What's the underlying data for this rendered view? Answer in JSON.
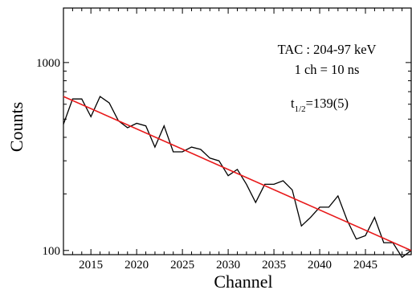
{
  "chart_data": {
    "type": "line",
    "xlabel": "Channel",
    "ylabel": "Counts",
    "xlim": [
      2012,
      2050
    ],
    "ylim": [
      95,
      1950
    ],
    "yscale": "log",
    "xticks": [
      2015,
      2020,
      2025,
      2030,
      2035,
      2040,
      2045
    ],
    "yticks": [
      100,
      1000
    ],
    "annotations": {
      "line1": "TAC : 204-97 keV",
      "line2": "1 ch = 10 ns",
      "half_life_symbol": "t",
      "half_life_subscript": "1/2",
      "half_life_value": "=139(5)"
    },
    "series": [
      {
        "style": "step-line",
        "color": "#000000",
        "x": [
          2012,
          2013,
          2014,
          2015,
          2016,
          2017,
          2018,
          2019,
          2020,
          2021,
          2022,
          2023,
          2024,
          2025,
          2026,
          2027,
          2028,
          2029,
          2030,
          2031,
          2032,
          2033,
          2034,
          2035,
          2036,
          2037,
          2038,
          2039,
          2040,
          2041,
          2042,
          2043,
          2044,
          2045,
          2046,
          2047,
          2048,
          2049,
          2050
        ],
        "values": [
          470,
          640,
          640,
          515,
          660,
          610,
          490,
          450,
          475,
          460,
          355,
          460,
          335,
          335,
          355,
          345,
          310,
          300,
          250,
          270,
          225,
          180,
          225,
          225,
          235,
          210,
          135,
          150,
          170,
          170,
          195,
          145,
          115,
          120,
          150,
          110,
          110,
          92,
          100
        ]
      },
      {
        "style": "fit-line",
        "color": "#e8191a",
        "x": [
          2012,
          2050
        ],
        "values": [
          660,
          100
        ]
      }
    ]
  }
}
